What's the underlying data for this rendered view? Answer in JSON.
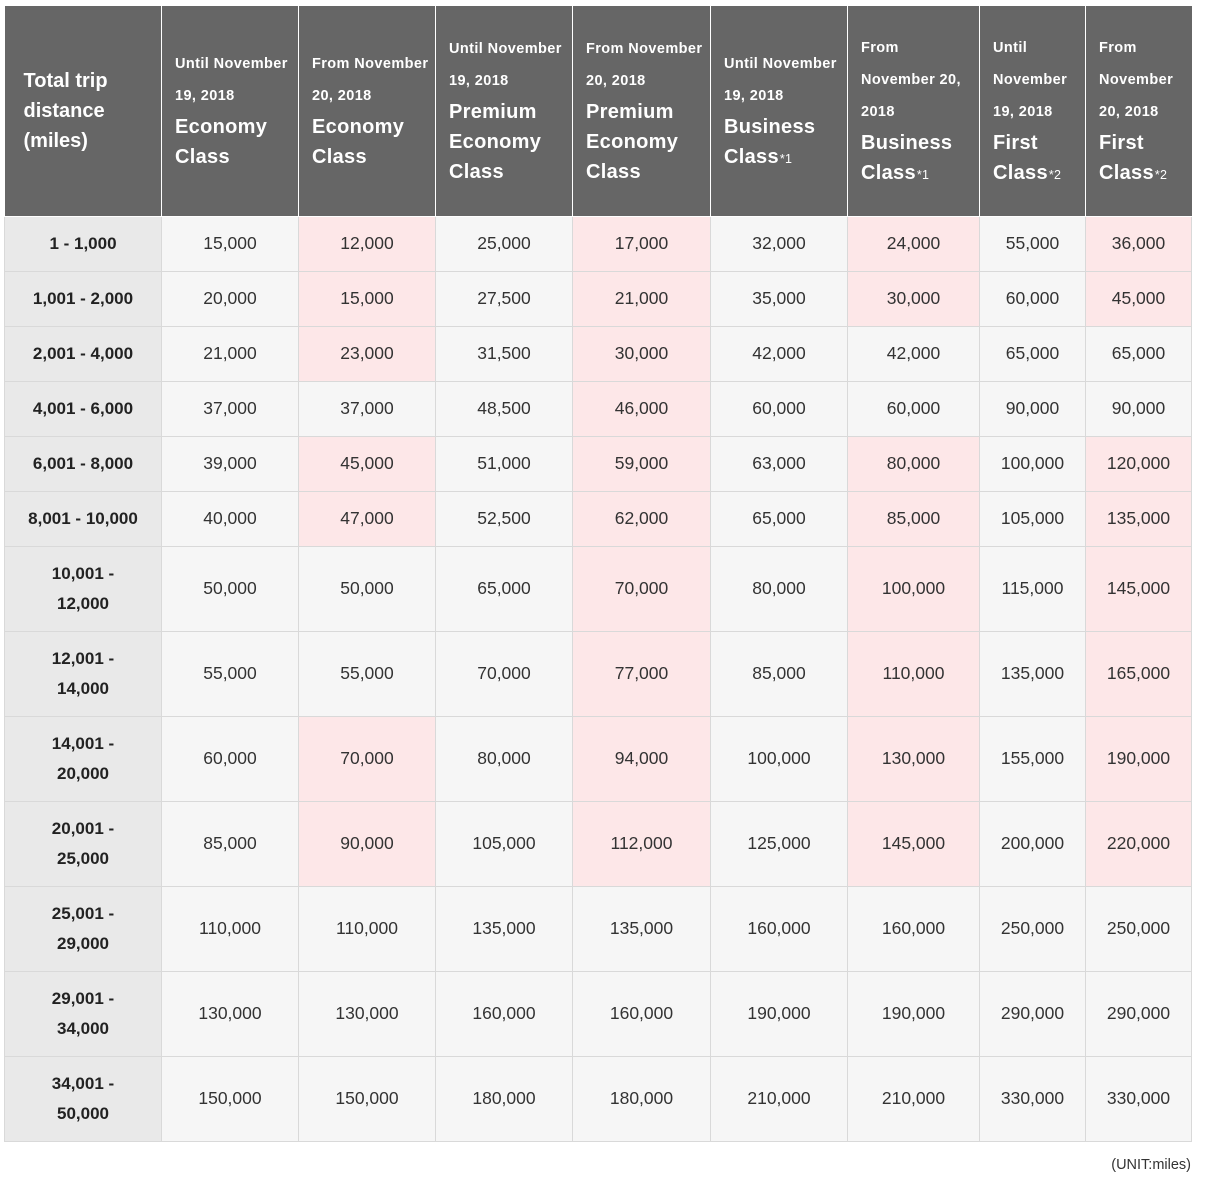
{
  "header": {
    "distance": "Total trip distance (miles)",
    "columns": [
      {
        "date": "Until November 19, 2018",
        "cls": "Economy Class",
        "note": ""
      },
      {
        "date": "From November 20, 2018",
        "cls": "Economy Class",
        "note": ""
      },
      {
        "date": "Until November 19, 2018",
        "cls": "Premium Economy Class",
        "note": ""
      },
      {
        "date": "From November 20, 2018",
        "cls": "Premium Economy Class",
        "note": ""
      },
      {
        "date": "Until November 19, 2018",
        "cls": "Business Class",
        "note": "*1"
      },
      {
        "date": "From November 20, 2018",
        "cls": "Business Class",
        "note": "*1"
      },
      {
        "date": "Until November 19, 2018",
        "cls": "First Class",
        "note": "*2"
      },
      {
        "date": "From November 20, 2018",
        "cls": "First Class",
        "note": "*2"
      }
    ]
  },
  "rows": [
    {
      "distance": "1 - 1,000",
      "values": [
        "15,000",
        "12,000",
        "25,000",
        "17,000",
        "32,000",
        "24,000",
        "55,000",
        "36,000"
      ],
      "pink": [
        false,
        true,
        false,
        true,
        false,
        true,
        false,
        true
      ]
    },
    {
      "distance": "1,001 - 2,000",
      "values": [
        "20,000",
        "15,000",
        "27,500",
        "21,000",
        "35,000",
        "30,000",
        "60,000",
        "45,000"
      ],
      "pink": [
        false,
        true,
        false,
        true,
        false,
        true,
        false,
        true
      ]
    },
    {
      "distance": "2,001 - 4,000",
      "values": [
        "21,000",
        "23,000",
        "31,500",
        "30,000",
        "42,000",
        "42,000",
        "65,000",
        "65,000"
      ],
      "pink": [
        false,
        true,
        false,
        true,
        false,
        false,
        false,
        false
      ]
    },
    {
      "distance": "4,001 - 6,000",
      "values": [
        "37,000",
        "37,000",
        "48,500",
        "46,000",
        "60,000",
        "60,000",
        "90,000",
        "90,000"
      ],
      "pink": [
        false,
        false,
        false,
        true,
        false,
        false,
        false,
        false
      ]
    },
    {
      "distance": "6,001 - 8,000",
      "values": [
        "39,000",
        "45,000",
        "51,000",
        "59,000",
        "63,000",
        "80,000",
        "100,000",
        "120,000"
      ],
      "pink": [
        false,
        true,
        false,
        true,
        false,
        true,
        false,
        true
      ]
    },
    {
      "distance": "8,001 - 10,000",
      "values": [
        "40,000",
        "47,000",
        "52,500",
        "62,000",
        "65,000",
        "85,000",
        "105,000",
        "135,000"
      ],
      "pink": [
        false,
        true,
        false,
        true,
        false,
        true,
        false,
        true
      ]
    },
    {
      "distance": "10,001 - 12,000",
      "values": [
        "50,000",
        "50,000",
        "65,000",
        "70,000",
        "80,000",
        "100,000",
        "115,000",
        "145,000"
      ],
      "pink": [
        false,
        false,
        false,
        true,
        false,
        true,
        false,
        true
      ]
    },
    {
      "distance": "12,001 - 14,000",
      "values": [
        "55,000",
        "55,000",
        "70,000",
        "77,000",
        "85,000",
        "110,000",
        "135,000",
        "165,000"
      ],
      "pink": [
        false,
        false,
        false,
        true,
        false,
        true,
        false,
        true
      ]
    },
    {
      "distance": "14,001 - 20,000",
      "values": [
        "60,000",
        "70,000",
        "80,000",
        "94,000",
        "100,000",
        "130,000",
        "155,000",
        "190,000"
      ],
      "pink": [
        false,
        true,
        false,
        true,
        false,
        true,
        false,
        true
      ]
    },
    {
      "distance": "20,001 - 25,000",
      "values": [
        "85,000",
        "90,000",
        "105,000",
        "112,000",
        "125,000",
        "145,000",
        "200,000",
        "220,000"
      ],
      "pink": [
        false,
        true,
        false,
        true,
        false,
        true,
        false,
        true
      ]
    },
    {
      "distance": "25,001 - 29,000",
      "values": [
        "110,000",
        "110,000",
        "135,000",
        "135,000",
        "160,000",
        "160,000",
        "250,000",
        "250,000"
      ],
      "pink": [
        false,
        false,
        false,
        false,
        false,
        false,
        false,
        false
      ]
    },
    {
      "distance": "29,001 - 34,000",
      "values": [
        "130,000",
        "130,000",
        "160,000",
        "160,000",
        "190,000",
        "190,000",
        "290,000",
        "290,000"
      ],
      "pink": [
        false,
        false,
        false,
        false,
        false,
        false,
        false,
        false
      ]
    },
    {
      "distance": "34,001 - 50,000",
      "values": [
        "150,000",
        "150,000",
        "180,000",
        "180,000",
        "210,000",
        "210,000",
        "330,000",
        "330,000"
      ],
      "pink": [
        false,
        false,
        false,
        false,
        false,
        false,
        false,
        false
      ]
    }
  ],
  "unit_note": "(UNIT:miles)"
}
